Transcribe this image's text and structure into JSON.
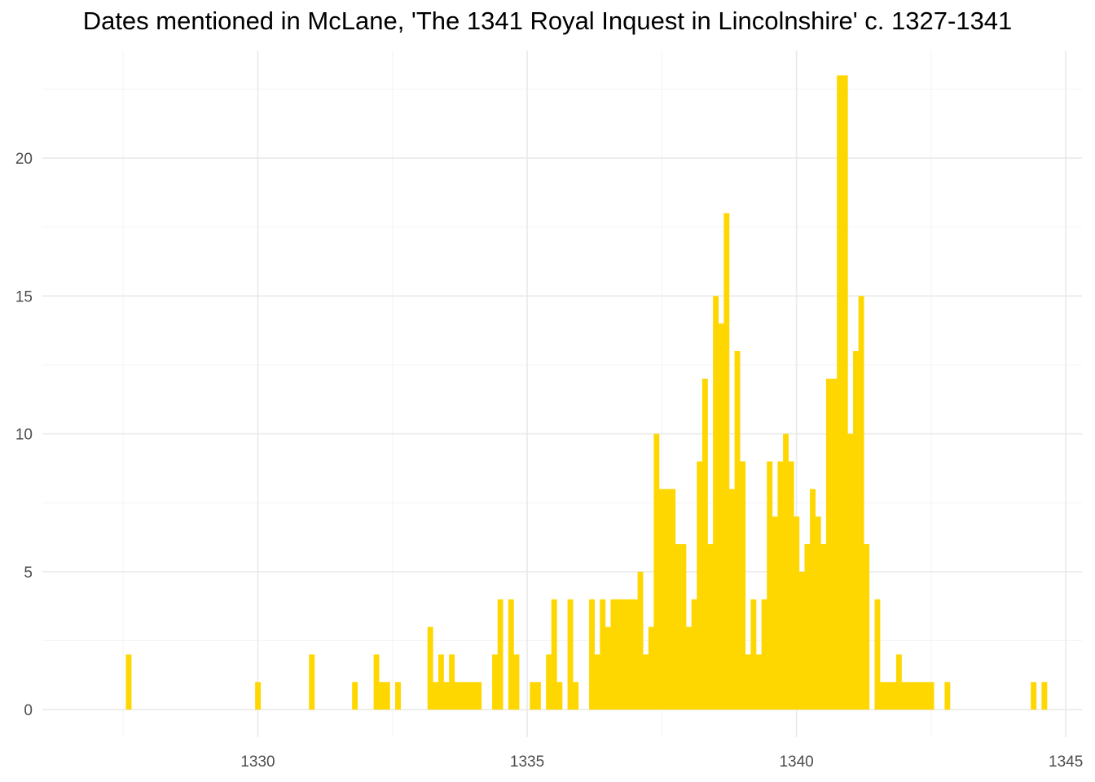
{
  "colors": {
    "bar": "#FFD700",
    "grid_major": "#e9e9e9",
    "grid_minor": "#f4f4f4",
    "tick_text": "#4d4d4d",
    "background": "#ffffff"
  },
  "chart_data": {
    "type": "bar",
    "title": "Dates mentioned in McLane, 'The 1341 Royal Inquest in Lincolnshire' c. 1327-1341",
    "xlabel": "",
    "ylabel": "",
    "xlim": [
      1326.0,
      1345.3
    ],
    "ylim": [
      -1.0,
      23.9
    ],
    "x_ticks": [
      1330,
      1335,
      1340,
      1345
    ],
    "y_ticks": [
      0,
      5,
      10,
      15,
      20
    ],
    "grid": true,
    "legend": "none",
    "bin_width": 0.1,
    "bins": [
      [
        1327.6,
        2
      ],
      [
        1330.0,
        1
      ],
      [
        1331.0,
        2
      ],
      [
        1331.8,
        1
      ],
      [
        1332.2,
        2
      ],
      [
        1332.3,
        1
      ],
      [
        1332.4,
        1
      ],
      [
        1332.6,
        1
      ],
      [
        1333.2,
        3
      ],
      [
        1333.3,
        1
      ],
      [
        1333.4,
        2
      ],
      [
        1333.5,
        1
      ],
      [
        1333.6,
        2
      ],
      [
        1333.7,
        1
      ],
      [
        1333.8,
        1
      ],
      [
        1333.9,
        1
      ],
      [
        1334.0,
        1
      ],
      [
        1334.1,
        1
      ],
      [
        1334.4,
        2
      ],
      [
        1334.5,
        4
      ],
      [
        1334.7,
        4
      ],
      [
        1334.8,
        2
      ],
      [
        1335.1,
        1
      ],
      [
        1335.2,
        1
      ],
      [
        1335.4,
        2
      ],
      [
        1335.5,
        4
      ],
      [
        1335.6,
        1
      ],
      [
        1335.8,
        4
      ],
      [
        1335.9,
        1
      ],
      [
        1336.2,
        4
      ],
      [
        1336.3,
        2
      ],
      [
        1336.4,
        4
      ],
      [
        1336.5,
        3
      ],
      [
        1336.6,
        4
      ],
      [
        1336.7,
        4
      ],
      [
        1336.8,
        4
      ],
      [
        1336.9,
        4
      ],
      [
        1337.0,
        4
      ],
      [
        1337.1,
        5
      ],
      [
        1337.2,
        2
      ],
      [
        1337.3,
        3
      ],
      [
        1337.4,
        10
      ],
      [
        1337.5,
        8
      ],
      [
        1337.6,
        8
      ],
      [
        1337.7,
        8
      ],
      [
        1337.8,
        6
      ],
      [
        1337.9,
        6
      ],
      [
        1338.0,
        3
      ],
      [
        1338.1,
        4
      ],
      [
        1338.2,
        9
      ],
      [
        1338.3,
        12
      ],
      [
        1338.4,
        6
      ],
      [
        1338.5,
        15
      ],
      [
        1338.6,
        14
      ],
      [
        1338.7,
        18
      ],
      [
        1338.8,
        8
      ],
      [
        1338.9,
        13
      ],
      [
        1339.0,
        9
      ],
      [
        1339.1,
        2
      ],
      [
        1339.2,
        4
      ],
      [
        1339.3,
        2
      ],
      [
        1339.4,
        4
      ],
      [
        1339.5,
        9
      ],
      [
        1339.6,
        7
      ],
      [
        1339.7,
        9
      ],
      [
        1339.8,
        10
      ],
      [
        1339.9,
        9
      ],
      [
        1340.0,
        7
      ],
      [
        1340.1,
        5
      ],
      [
        1340.2,
        6
      ],
      [
        1340.3,
        8
      ],
      [
        1340.4,
        7
      ],
      [
        1340.5,
        6
      ],
      [
        1340.6,
        12
      ],
      [
        1340.7,
        12
      ],
      [
        1340.8,
        23
      ],
      [
        1340.9,
        23
      ],
      [
        1341.0,
        10
      ],
      [
        1341.1,
        13
      ],
      [
        1341.2,
        15
      ],
      [
        1341.3,
        6
      ],
      [
        1341.5,
        4
      ],
      [
        1341.6,
        1
      ],
      [
        1341.7,
        1
      ],
      [
        1341.8,
        1
      ],
      [
        1341.9,
        2
      ],
      [
        1342.0,
        1
      ],
      [
        1342.1,
        1
      ],
      [
        1342.2,
        1
      ],
      [
        1342.3,
        1
      ],
      [
        1342.4,
        1
      ],
      [
        1342.5,
        1
      ],
      [
        1342.8,
        1
      ],
      [
        1344.4,
        1
      ],
      [
        1344.6,
        1
      ]
    ]
  }
}
